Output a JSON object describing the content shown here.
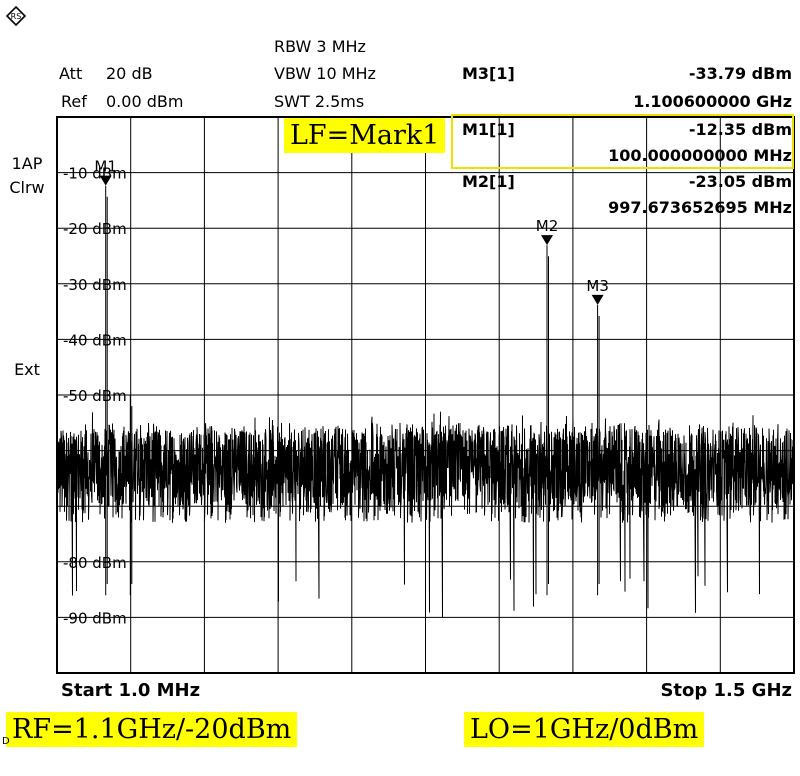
{
  "header": {
    "att_label": "Att",
    "att_value": "20 dB",
    "ref_label": "Ref",
    "ref_value": "0.00 dBm",
    "rbw": "RBW 3 MHz",
    "vbw": "VBW 10 MHz",
    "swt": "SWT 2.5ms"
  },
  "side": {
    "trace_mode_1": "1AP",
    "trace_mode_2": "Clrw",
    "trigger": "Ext"
  },
  "marker_table": [
    {
      "name": "M3[1]",
      "level": "-33.79 dBm",
      "freq": "1.100600000 GHz"
    },
    {
      "name": "M1[1]",
      "level": "-12.35 dBm",
      "freq": "100.000000000 MHz"
    },
    {
      "name": "M2[1]",
      "level": "-23.05 dBm",
      "freq": "997.673652695 MHz"
    }
  ],
  "annotations": {
    "lf_note": "LF=Mark1",
    "rf_note": "RF=1.1GHz/-20dBm",
    "lo_note": "LO=1GHz/0dBm",
    "small_corner": "D"
  },
  "footer": {
    "start": "Start 1.0 MHz",
    "stop": "Stop 1.5 GHz"
  },
  "icons": {
    "corner": "rohde-schwarz-logo-icon"
  },
  "colors": {
    "trace": "#000000",
    "grid": "#000000",
    "highlight_box": "#f0e000",
    "note_bg": "#ffff00"
  },
  "chart_data": {
    "type": "line",
    "title": "",
    "xlabel": "",
    "ylabel": "",
    "xlim": [
      1.0,
      1500.0
    ],
    "x_unit": "MHz",
    "ylim": [
      -100,
      0
    ],
    "grid": true,
    "y_ticks": [
      {
        "value": -10,
        "label": "-10 dBm"
      },
      {
        "value": -20,
        "label": "-20 dBm"
      },
      {
        "value": -30,
        "label": "-30 dBm"
      },
      {
        "value": -40,
        "label": "-40 dBm"
      },
      {
        "value": -50,
        "label": "-50 dBm"
      },
      {
        "value": -60,
        "label": ""
      },
      {
        "value": -70,
        "label": ""
      },
      {
        "value": -80,
        "label": "-80 dBm"
      },
      {
        "value": -90,
        "label": "-90 dBm"
      }
    ],
    "noise_floor": {
      "min_dbm": -90,
      "max_dbm": -53,
      "typical_dbm": -63
    },
    "peaks": [
      {
        "x": 100.0,
        "y": -12.35
      },
      {
        "x": 150.0,
        "y": -50.0
      },
      {
        "x": 997.67,
        "y": -23.05
      },
      {
        "x": 1100.6,
        "y": -33.79
      }
    ],
    "markers": [
      {
        "label": "M1",
        "x": 100.0,
        "y": -12.35
      },
      {
        "label": "M2",
        "x": 997.67,
        "y": -23.05
      },
      {
        "label": "M3",
        "x": 1100.6,
        "y": -33.79
      }
    ]
  }
}
